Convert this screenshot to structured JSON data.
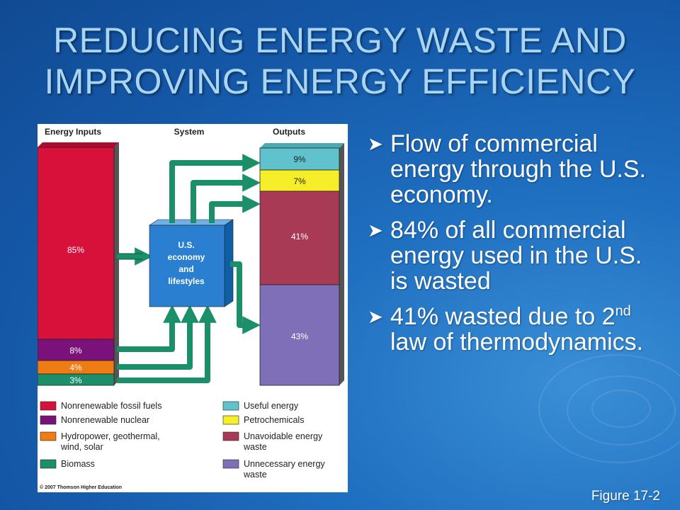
{
  "title": "REDUCING ENERGY WASTE AND IMPROVING ENERGY EFFICIENCY",
  "figure": {
    "headers": {
      "inputs": "Energy Inputs",
      "system": "System",
      "outputs": "Outputs"
    },
    "inputs": [
      {
        "label": "85%",
        "color": "#d8113a"
      },
      {
        "label": "8%",
        "color": "#7b117a"
      },
      {
        "label": "4%",
        "color": "#ef7c12"
      },
      {
        "label": "3%",
        "color": "#1a8f6a"
      }
    ],
    "outputs": [
      {
        "label": "9%",
        "color": "#5fc2cc"
      },
      {
        "label": "7%",
        "color": "#f5ee28"
      },
      {
        "label": "41%",
        "color": "#a83a55"
      },
      {
        "label": "43%",
        "color": "#7e6fb8"
      }
    ],
    "system_lines": [
      "U.S.",
      "economy",
      "and",
      "lifestyles"
    ],
    "legend_left": [
      {
        "text": "Nonrenewable fossil fuels",
        "color": "#d8113a"
      },
      {
        "text": "Nonrenewable nuclear",
        "color": "#7b117a"
      },
      {
        "text": "Hydropower, geothermal,",
        "text2": "wind, solar",
        "color": "#ef7c12"
      },
      {
        "text": "Biomass",
        "color": "#1a8f6a"
      }
    ],
    "legend_right": [
      {
        "text": "Useful energy",
        "color": "#5fc2cc"
      },
      {
        "text": "Petrochemicals",
        "color": "#f5ee28"
      },
      {
        "text": "Unavoidable energy",
        "text2": "waste",
        "color": "#a83a55"
      },
      {
        "text": "Unnecessary energy",
        "text2": "waste",
        "color": "#7e6fb8"
      }
    ],
    "copyright": "© 2007 Thomson Higher Education"
  },
  "bullets": [
    {
      "text": "Flow of commercial energy through the U.S. economy."
    },
    {
      "text": "84% of all commercial energy used in the U.S. is wasted"
    },
    {
      "text_pre": "41% wasted due to 2",
      "sup": "nd",
      "text_post": " law of thermodynamics."
    }
  ],
  "caption": "Figure 17-2"
}
